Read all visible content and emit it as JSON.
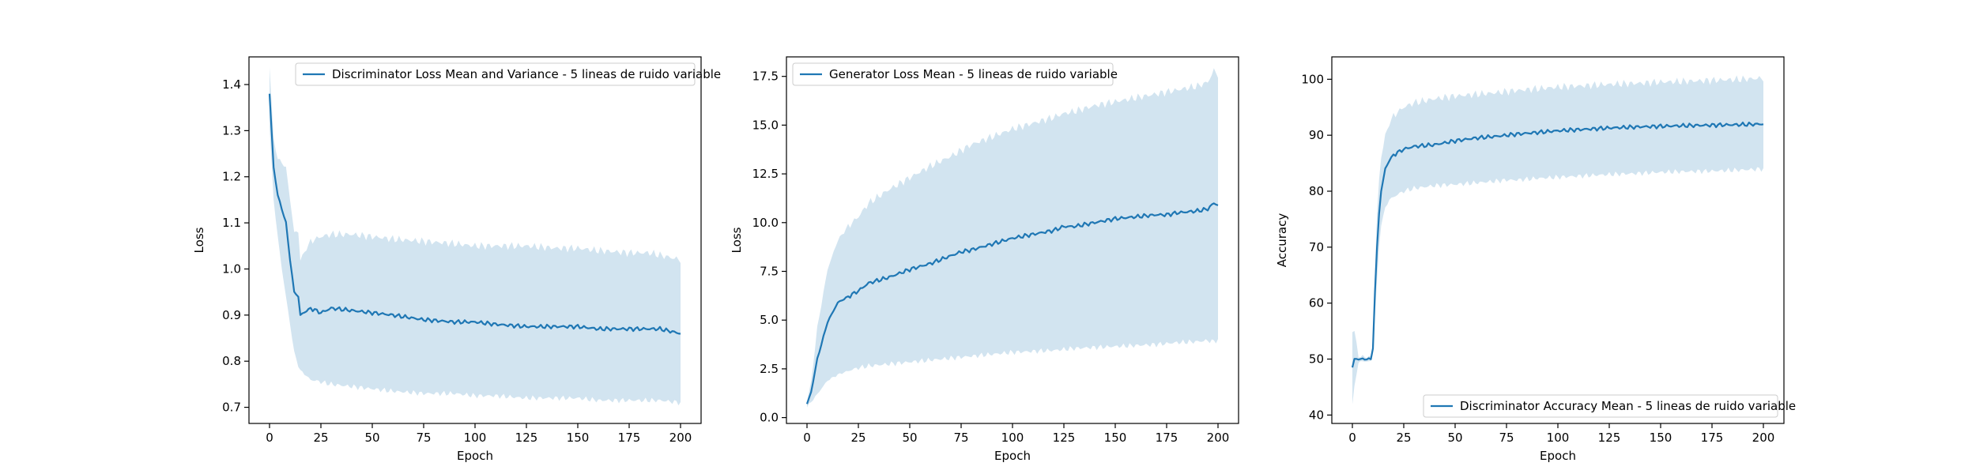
{
  "colors": {
    "line": "#1f77b4",
    "band": "#1f77b4",
    "band_opacity": 0.2,
    "frame": "#000000"
  },
  "chart_data": [
    {
      "type": "area",
      "xlabel": "Epoch",
      "ylabel": "Loss",
      "xlim": [
        -10,
        210
      ],
      "ylim": [
        0.665,
        1.46
      ],
      "xticks": [
        0,
        25,
        50,
        75,
        100,
        125,
        150,
        175,
        200
      ],
      "yticks": [
        0.7,
        0.8,
        0.9,
        1.0,
        1.1,
        1.2,
        1.3,
        1.4
      ],
      "ytick_format": 1,
      "legend_position": "upper right",
      "series": [
        {
          "name": "Discriminator Loss Mean and Variance - 5 lineas de ruido variable",
          "x": [
            0,
            2,
            4,
            6,
            8,
            10,
            12,
            14,
            15,
            20,
            25,
            30,
            40,
            50,
            60,
            75,
            90,
            100,
            110,
            125,
            140,
            150,
            160,
            175,
            185,
            190,
            200
          ],
          "y": [
            1.38,
            1.22,
            1.16,
            1.13,
            1.1,
            1.02,
            0.95,
            0.94,
            0.9,
            0.915,
            0.905,
            0.915,
            0.91,
            0.905,
            0.9,
            0.89,
            0.885,
            0.885,
            0.88,
            0.875,
            0.875,
            0.875,
            0.87,
            0.87,
            0.87,
            0.87,
            0.86
          ],
          "lower": [
            1.31,
            1.15,
            1.07,
            1.0,
            0.94,
            0.88,
            0.82,
            0.79,
            0.78,
            0.76,
            0.755,
            0.75,
            0.745,
            0.74,
            0.735,
            0.73,
            0.73,
            0.725,
            0.725,
            0.72,
            0.72,
            0.72,
            0.715,
            0.715,
            0.715,
            0.715,
            0.71
          ],
          "upper": [
            1.44,
            1.28,
            1.24,
            1.23,
            1.22,
            1.15,
            1.08,
            1.08,
            1.02,
            1.06,
            1.07,
            1.075,
            1.075,
            1.07,
            1.065,
            1.06,
            1.055,
            1.05,
            1.05,
            1.05,
            1.045,
            1.045,
            1.04,
            1.035,
            1.035,
            1.03,
            1.02
          ]
        }
      ]
    },
    {
      "type": "area",
      "xlabel": "Epoch",
      "ylabel": "Loss",
      "xlim": [
        -10,
        210
      ],
      "ylim": [
        -0.3,
        18.5
      ],
      "xticks": [
        0,
        25,
        50,
        75,
        100,
        125,
        150,
        175,
        200
      ],
      "yticks": [
        0.0,
        2.5,
        5.0,
        7.5,
        10.0,
        12.5,
        15.0,
        17.5
      ],
      "ytick_format": 1,
      "legend_position": "upper left",
      "series": [
        {
          "name": "Generator Loss Mean - 5 lineas de ruido variable",
          "x": [
            0,
            2,
            5,
            10,
            15,
            20,
            25,
            30,
            40,
            50,
            60,
            70,
            75,
            80,
            90,
            100,
            110,
            120,
            125,
            130,
            140,
            150,
            160,
            170,
            175,
            180,
            190,
            195,
            198,
            200
          ],
          "y": [
            0.7,
            1.3,
            3.0,
            4.9,
            5.9,
            6.2,
            6.5,
            6.9,
            7.2,
            7.6,
            7.9,
            8.3,
            8.5,
            8.6,
            8.9,
            9.2,
            9.4,
            9.6,
            9.8,
            9.8,
            10.0,
            10.2,
            10.3,
            10.4,
            10.4,
            10.5,
            10.6,
            10.7,
            11.0,
            10.9
          ],
          "lower": [
            0.55,
            0.8,
            1.2,
            1.9,
            2.2,
            2.4,
            2.55,
            2.65,
            2.75,
            2.85,
            2.95,
            3.05,
            3.1,
            3.15,
            3.25,
            3.35,
            3.4,
            3.45,
            3.5,
            3.55,
            3.6,
            3.65,
            3.7,
            3.75,
            3.8,
            3.85,
            3.9,
            3.95,
            3.9,
            4.0
          ],
          "upper": [
            0.85,
            1.8,
            4.6,
            7.6,
            9.1,
            9.8,
            10.3,
            11.0,
            11.7,
            12.3,
            12.9,
            13.4,
            13.7,
            14.0,
            14.4,
            14.8,
            15.1,
            15.4,
            15.6,
            15.7,
            16.0,
            16.2,
            16.4,
            16.6,
            16.7,
            16.8,
            17.0,
            17.2,
            17.8,
            17.6
          ]
        }
      ]
    },
    {
      "type": "area",
      "xlabel": "Epoch",
      "ylabel": "Accuracy",
      "xlim": [
        -10,
        210
      ],
      "ylim": [
        38.5,
        104
      ],
      "xticks": [
        0,
        25,
        50,
        75,
        100,
        125,
        150,
        175,
        200
      ],
      "yticks": [
        40,
        50,
        60,
        70,
        80,
        90,
        100
      ],
      "ytick_format": 0,
      "legend_position": "lower right",
      "series": [
        {
          "name": "Discriminator Accuracy Mean - 5 lineas de ruido variable",
          "x": [
            0,
            1,
            3,
            6,
            9,
            10,
            11,
            12,
            13,
            14,
            16,
            18,
            20,
            25,
            30,
            40,
            50,
            60,
            70,
            75,
            80,
            90,
            100,
            110,
            125,
            140,
            150,
            160,
            175,
            190,
            200
          ],
          "y": [
            48.5,
            50.0,
            50.0,
            50.0,
            50.0,
            52.0,
            62.0,
            70.0,
            76.0,
            80.0,
            84.0,
            85.5,
            86.5,
            87.5,
            88.0,
            88.3,
            89.0,
            89.5,
            89.8,
            90.0,
            90.2,
            90.5,
            90.8,
            91.0,
            91.3,
            91.5,
            91.6,
            91.7,
            91.8,
            91.9,
            92.0
          ],
          "lower": [
            42.0,
            45.0,
            49.5,
            49.6,
            49.6,
            51.0,
            58.0,
            64.0,
            70.0,
            74.0,
            77.0,
            78.5,
            79.0,
            80.0,
            80.5,
            81.0,
            81.2,
            81.5,
            81.8,
            82.0,
            82.0,
            82.3,
            82.5,
            82.7,
            83.0,
            83.2,
            83.4,
            83.5,
            83.6,
            83.8,
            84.0
          ],
          "upper": [
            55.0,
            55.0,
            50.5,
            50.4,
            50.4,
            53.0,
            66.0,
            76.0,
            82.0,
            86.0,
            90.0,
            92.0,
            93.5,
            95.0,
            95.8,
            96.5,
            97.0,
            97.3,
            97.6,
            97.8,
            98.0,
            98.3,
            98.6,
            98.8,
            99.1,
            99.3,
            99.5,
            99.6,
            99.8,
            100.0,
            100.2
          ]
        }
      ]
    }
  ]
}
